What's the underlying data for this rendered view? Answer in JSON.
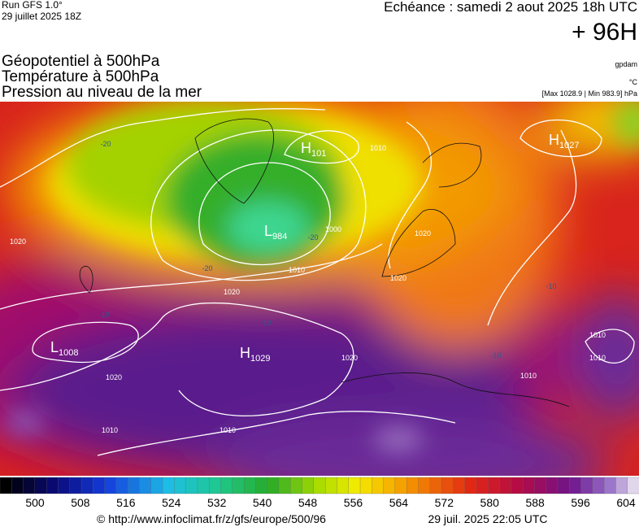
{
  "header": {
    "run": "Run GFS 1.0°",
    "run_date": "29 juillet 2025 18Z",
    "valid": "Echéance : samedi 2 aout 2025 18h UTC",
    "lead": "+ 96H"
  },
  "fields": [
    "Géopotentiel à 500hPa",
    "Température à 500hPa",
    "Pression au niveau de la mer"
  ],
  "units": {
    "geopotential": "gpdam",
    "temperature": "°C",
    "pressure": "[Max 1028.9 | Min 983.9] hPa"
  },
  "map": {
    "pressure_centers": [
      {
        "type": "H",
        "value": "101"
      },
      {
        "type": "L",
        "value": "984"
      },
      {
        "type": "H",
        "value": "1027"
      },
      {
        "type": "L",
        "value": "1008"
      },
      {
        "type": "H",
        "value": "1029"
      }
    ],
    "isobar_labels": [
      "1010",
      "1000",
      "1010",
      "1020",
      "1020",
      "1010",
      "1010",
      "1020",
      "1020",
      "1020",
      "1010",
      "1010",
      "1010",
      "1020"
    ],
    "temperature_labels": [
      "-20",
      "-20",
      "-20",
      "-10",
      "-10",
      "-10",
      "-10"
    ]
  },
  "legend": {
    "ticks": [
      500,
      508,
      516,
      524,
      532,
      540,
      548,
      556,
      564,
      572,
      580,
      588,
      596,
      604
    ]
  },
  "footer": {
    "source": "© http://www.infoclimat.fr/z/gfs/europe/500/96",
    "generated": "29 juil. 2025 22:05 UTC"
  }
}
